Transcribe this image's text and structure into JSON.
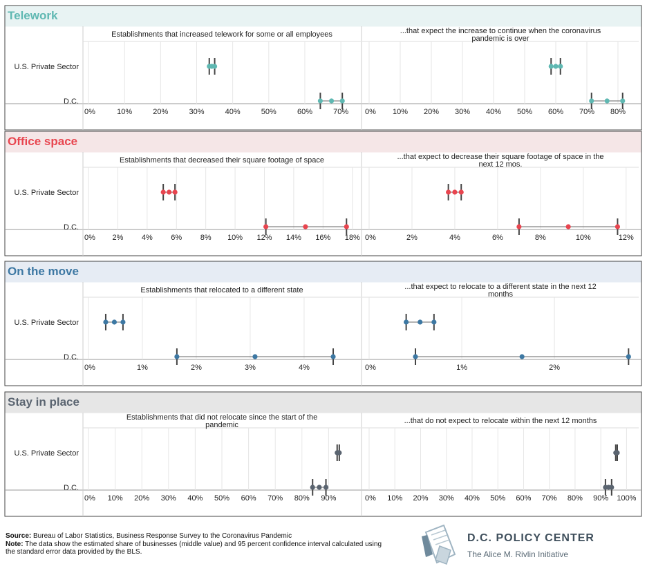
{
  "chart_data": {
    "type": "dot-interval",
    "row_labels": [
      "U.S. Private Sector",
      "D.C."
    ],
    "sections": [
      {
        "title": "Telework",
        "color": "#5fb8b2",
        "header_bg": "#e8f3f3",
        "panels": [
          {
            "subtitle": "Establishments that increased telework for some or all employees",
            "xlim": [
              0,
              0.74
            ],
            "ticks": [
              0,
              0.1,
              0.2,
              0.3,
              0.4,
              0.5,
              0.6,
              0.7
            ],
            "tick_labels": [
              "0%",
              "10%",
              "20%",
              "30%",
              "40%",
              "50%",
              "60%",
              "70%"
            ],
            "rows": [
              {
                "low": 0.335,
                "mid": 0.342,
                "high": 0.35
              },
              {
                "low": 0.643,
                "mid": 0.674,
                "high": 0.704
              }
            ]
          },
          {
            "subtitle": "...that expect the increase to continue when the coronavirus pandemic is over",
            "xlim": [
              0,
              0.84
            ],
            "ticks": [
              0,
              0.1,
              0.2,
              0.3,
              0.4,
              0.5,
              0.6,
              0.7,
              0.8
            ],
            "tick_labels": [
              "0%",
              "10%",
              "20%",
              "30%",
              "40%",
              "50%",
              "60%",
              "70%",
              "80%"
            ],
            "rows": [
              {
                "low": 0.585,
                "mid": 0.6,
                "high": 0.615
              },
              {
                "low": 0.715,
                "mid": 0.765,
                "high": 0.815
              }
            ]
          }
        ]
      },
      {
        "title": "Office space",
        "color": "#e8454f",
        "header_bg": "#f5e6e7",
        "panels": [
          {
            "subtitle": "Establishments that decreased their square footage of space",
            "xlim": [
              0,
              0.182
            ],
            "ticks": [
              0,
              0.02,
              0.04,
              0.06,
              0.08,
              0.1,
              0.12,
              0.14,
              0.16,
              0.18
            ],
            "tick_labels": [
              "0%",
              "2%",
              "4%",
              "6%",
              "8%",
              "10%",
              "12%",
              "14%",
              "16%",
              "18%"
            ],
            "rows": [
              {
                "low": 0.051,
                "mid": 0.055,
                "high": 0.059
              },
              {
                "low": 0.121,
                "mid": 0.148,
                "high": 0.176
              }
            ]
          },
          {
            "subtitle": "...that expect to decrease their square footage of space in the next 12 mos.",
            "xlim": [
              0,
              0.122
            ],
            "ticks": [
              0,
              0.02,
              0.04,
              0.06,
              0.08,
              0.1,
              0.12
            ],
            "tick_labels": [
              "0%",
              "2%",
              "4%",
              "6%",
              "8%",
              "10%",
              "12%"
            ],
            "rows": [
              {
                "low": 0.037,
                "mid": 0.04,
                "high": 0.043
              },
              {
                "low": 0.07,
                "mid": 0.093,
                "high": 0.116
              }
            ]
          }
        ]
      },
      {
        "title": "On the move",
        "color": "#3d78a3",
        "header_bg": "#e6ecf4",
        "panels": [
          {
            "subtitle": "Establishments that relocated to a different state",
            "xlim": [
              0,
              0.0495
            ],
            "ticks": [
              0,
              0.01,
              0.02,
              0.03,
              0.04
            ],
            "tick_labels": [
              "0%",
              "1%",
              "2%",
              "3%",
              "4%"
            ],
            "rows": [
              {
                "low": 0.0032,
                "mid": 0.0048,
                "high": 0.0064
              },
              {
                "low": 0.0164,
                "mid": 0.0309,
                "high": 0.0454
              }
            ]
          },
          {
            "subtitle": "...that expect to relocate to a different state in the next 12 months",
            "xlim": [
              0,
              0.0282
            ],
            "ticks": [
              0,
              0.01,
              0.02
            ],
            "tick_labels": [
              "0%",
              "1%",
              "2%"
            ],
            "rows": [
              {
                "low": 0.004,
                "mid": 0.0055,
                "high": 0.007
              },
              {
                "low": 0.005,
                "mid": 0.0165,
                "high": 0.028
              }
            ]
          }
        ]
      },
      {
        "title": "Stay in place",
        "color": "#5a6470",
        "header_bg": "#e6e6e6",
        "panels": [
          {
            "subtitle": "Establishments that did not relocate since the start of the pandemic",
            "xlim": [
              0,
              1.0
            ],
            "ticks": [
              0,
              0.1,
              0.2,
              0.3,
              0.4,
              0.5,
              0.6,
              0.7,
              0.8,
              0.9
            ],
            "tick_labels": [
              "0%",
              "10%",
              "20%",
              "30%",
              "40%",
              "50%",
              "60%",
              "70%",
              "80%",
              "90%"
            ],
            "rows": [
              {
                "low": 0.932,
                "mid": 0.936,
                "high": 0.94
              },
              {
                "low": 0.84,
                "mid": 0.865,
                "high": 0.89
              }
            ]
          },
          {
            "subtitle": "...that do not expect to relocate within the next 12 months",
            "xlim": [
              0,
              1.015
            ],
            "ticks": [
              0,
              0.1,
              0.2,
              0.3,
              0.4,
              0.5,
              0.6,
              0.7,
              0.8,
              0.9,
              1.0
            ],
            "tick_labels": [
              "0%",
              "10%",
              "20%",
              "30%",
              "40%",
              "50%",
              "60%",
              "70%",
              "80%",
              "90%",
              "100%"
            ],
            "rows": [
              {
                "low": 0.958,
                "mid": 0.961,
                "high": 0.964
              },
              {
                "low": 0.918,
                "mid": 0.93,
                "high": 0.942
              }
            ]
          }
        ]
      }
    ]
  },
  "footer": {
    "source_label": "Source:",
    "source_text": "Bureau of Labor Statistics, Business Response Survey to the Coronavirus Pandemic",
    "note_label": "Note:",
    "note_text": "The data show the estimated share of businesses (middle value) and 95 percent confidence interval calculated using the standard error data provided by the BLS."
  },
  "logo": {
    "title": "D.C. POLICY CENTER",
    "subtitle": "The Alice M. Rivlin Initiative",
    "icon": "document-map-icon"
  }
}
